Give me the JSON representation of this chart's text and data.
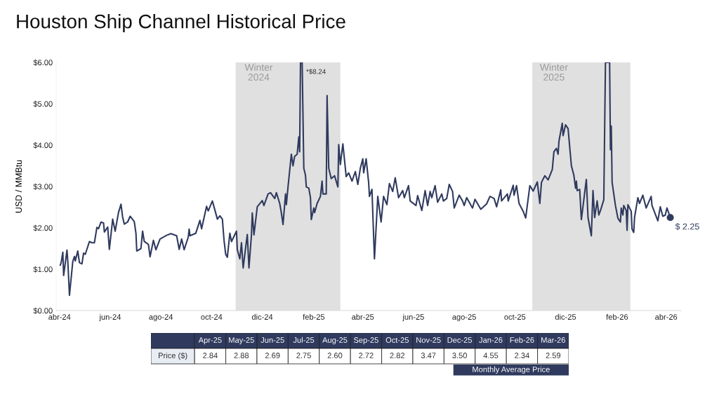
{
  "chart_data": [
    {
      "type": "line",
      "title": "Houston Ship Channel Historical Price",
      "ylabel": "USD / MMBtu",
      "xlim": [
        "2024-03-28",
        "2026-04-19"
      ],
      "xticks": [
        {
          "value": "2024-04-01",
          "label": "abr-24"
        },
        {
          "value": "2024-06-01",
          "label": "jun-24"
        },
        {
          "value": "2024-08-01",
          "label": "ago-24"
        },
        {
          "value": "2024-10-01",
          "label": "oct-24"
        },
        {
          "value": "2024-12-01",
          "label": "dic-24"
        },
        {
          "value": "2025-02-01",
          "label": "feb-25"
        },
        {
          "value": "2025-04-01",
          "label": "abr-25"
        },
        {
          "value": "2025-06-01",
          "label": "jun-25"
        },
        {
          "value": "2025-08-01",
          "label": "ago-25"
        },
        {
          "value": "2025-10-01",
          "label": "oct-25"
        },
        {
          "value": "2025-12-01",
          "label": "dic-25"
        },
        {
          "value": "2026-02-01",
          "label": "feb-26"
        },
        {
          "value": "2026-04-01",
          "label": "abr-26"
        }
      ],
      "ylim": [
        0,
        6
      ],
      "yticks": [
        {
          "value": 0,
          "label": "$0.00"
        },
        {
          "value": 1,
          "label": "$1.00"
        },
        {
          "value": 2,
          "label": "$2.00"
        },
        {
          "value": 3,
          "label": "$3.00"
        },
        {
          "value": 4,
          "label": "$4.00"
        },
        {
          "value": 5,
          "label": "$5.00"
        },
        {
          "value": 6,
          "label": "$6.00"
        }
      ],
      "grid": false,
      "legend": false,
      "bands": [
        {
          "axis": "x",
          "from": "2024-10-30",
          "to": "2025-03-05",
          "label": "Winter\n2024",
          "color": "#e0e0e0"
        },
        {
          "axis": "x",
          "from": "2025-10-22",
          "to": "2026-02-17",
          "label": "Winter\n2025",
          "color": "#e0e0e0"
        }
      ],
      "annotations": [
        {
          "text": "*$8.24",
          "x": "2025-01-17",
          "y": 6.0
        },
        {
          "text": "$ 2.25",
          "x": "2026-04-06",
          "y": 2.25
        }
      ],
      "series": [
        {
          "type": "line",
          "color": "#2f3a5e",
          "x": [
            "2024-04-02",
            "2024-04-03",
            "2024-04-05",
            "2024-04-06",
            "2024-04-10",
            "2024-04-11",
            "2024-04-13",
            "2024-04-17",
            "2024-04-19",
            "2024-04-20",
            "2024-04-23",
            "2024-04-25",
            "2024-04-28",
            "2024-04-30",
            "2024-05-02",
            "2024-05-07",
            "2024-05-10",
            "2024-05-13",
            "2024-05-16",
            "2024-05-18",
            "2024-05-21",
            "2024-05-24",
            "2024-05-25",
            "2024-05-29",
            "2024-05-31",
            "2024-06-04",
            "2024-06-07",
            "2024-06-11",
            "2024-06-14",
            "2024-06-16",
            "2024-06-18",
            "2024-06-22",
            "2024-06-25",
            "2024-06-30",
            "2024-07-02",
            "2024-07-03",
            "2024-07-08",
            "2024-07-10",
            "2024-07-12",
            "2024-07-17",
            "2024-07-19",
            "2024-07-23",
            "2024-07-26",
            "2024-07-31",
            "2024-08-08",
            "2024-08-13",
            "2024-08-20",
            "2024-08-23",
            "2024-08-26",
            "2024-08-29",
            "2024-09-03",
            "2024-09-04",
            "2024-09-05",
            "2024-09-12",
            "2024-09-17",
            "2024-09-19",
            "2024-09-25",
            "2024-09-27",
            "2024-10-02",
            "2024-10-05",
            "2024-10-08",
            "2024-10-11",
            "2024-10-14",
            "2024-10-16",
            "2024-10-18",
            "2024-10-20",
            "2024-10-23",
            "2024-10-25",
            "2024-10-31",
            "2024-11-01",
            "2024-11-04",
            "2024-11-06",
            "2024-11-08",
            "2024-11-13",
            "2024-11-15",
            "2024-11-18",
            "2024-11-19",
            "2024-11-21",
            "2024-11-25",
            "2024-12-01",
            "2024-12-03",
            "2024-12-08",
            "2024-12-11",
            "2024-12-16",
            "2024-12-18",
            "2024-12-22",
            "2024-12-24",
            "2024-12-26",
            "2024-12-29",
            "2024-12-30",
            "2025-01-01",
            "2025-01-05",
            "2025-01-07",
            "2025-01-09",
            "2025-01-12",
            "2025-01-14",
            "2025-01-15",
            "2025-01-16",
            "2025-01-18",
            "2025-01-20",
            "2025-01-22",
            "2025-01-23",
            "2025-01-26",
            "2025-01-28",
            "2025-01-29",
            "2025-02-01",
            "2025-02-02",
            "2025-02-05",
            "2025-02-09",
            "2025-02-11",
            "2025-02-12",
            "2025-02-16",
            "2025-02-17",
            "2025-02-19",
            "2025-02-22",
            "2025-02-26",
            "2025-03-02",
            "2025-03-03",
            "2025-03-05",
            "2025-03-08",
            "2025-03-12",
            "2025-03-15",
            "2025-03-19",
            "2025-03-23",
            "2025-03-26",
            "2025-03-29",
            "2025-04-01",
            "2025-04-02",
            "2025-04-05",
            "2025-04-08",
            "2025-04-09",
            "2025-04-12",
            "2025-04-15",
            "2025-04-19",
            "2025-04-23",
            "2025-04-26",
            "2025-04-30",
            "2025-05-03",
            "2025-05-07",
            "2025-05-10",
            "2025-05-14",
            "2025-05-19",
            "2025-05-21",
            "2025-05-26",
            "2025-05-28",
            "2025-06-04",
            "2025-06-06",
            "2025-06-11",
            "2025-06-15",
            "2025-06-18",
            "2025-06-21",
            "2025-06-23",
            "2025-06-27",
            "2025-06-30",
            "2025-07-05",
            "2025-07-07",
            "2025-07-11",
            "2025-07-14",
            "2025-07-18",
            "2025-07-20",
            "2025-07-26",
            "2025-07-30",
            "2025-08-01",
            "2025-08-04",
            "2025-08-11",
            "2025-08-14",
            "2025-08-21",
            "2025-08-28",
            "2025-09-01",
            "2025-09-06",
            "2025-09-09",
            "2025-09-14",
            "2025-09-15",
            "2025-09-22",
            "2025-09-23",
            "2025-09-29",
            "2025-09-30",
            "2025-10-03",
            "2025-10-06",
            "2025-10-11",
            "2025-10-14",
            "2025-10-19",
            "2025-10-23",
            "2025-10-28",
            "2025-10-31",
            "2025-11-02",
            "2025-11-06",
            "2025-11-10",
            "2025-11-15",
            "2025-11-17",
            "2025-11-20",
            "2025-11-22",
            "2025-11-23",
            "2025-11-27",
            "2025-11-28",
            "2025-12-01",
            "2025-12-04",
            "2025-12-08",
            "2025-12-11",
            "2025-12-13",
            "2025-12-14",
            "2025-12-15",
            "2025-12-18",
            "2025-12-20",
            "2025-12-26",
            "2025-12-28",
            "2026-01-01",
            "2026-01-03",
            "2026-01-05",
            "2026-01-08",
            "2026-01-10",
            "2026-01-12",
            "2026-01-16",
            "2026-01-18",
            "2026-01-23",
            "2026-01-24",
            "2026-01-25",
            "2026-01-26",
            "2026-01-30",
            "2026-02-02",
            "2026-02-05",
            "2026-02-06",
            "2026-02-08",
            "2026-02-09",
            "2026-02-12",
            "2026-02-13",
            "2026-02-14",
            "2026-02-18",
            "2026-02-19",
            "2026-02-21",
            "2026-02-22",
            "2026-02-26",
            "2026-02-28",
            "2026-03-04",
            "2026-03-08",
            "2026-03-14",
            "2026-03-15",
            "2026-03-22",
            "2026-03-25",
            "2026-03-28",
            "2026-03-31",
            "2026-04-02",
            "2026-04-06"
          ],
          "values": [
            1.1,
            1.16,
            1.41,
            0.85,
            1.46,
            1.19,
            0.37,
            1.19,
            1.31,
            1.2,
            1.44,
            1.16,
            1.13,
            1.39,
            1.36,
            1.67,
            1.64,
            1.64,
            2.01,
            1.98,
            2.14,
            2.12,
            1.9,
            2.02,
            1.48,
            2.21,
            1.92,
            2.37,
            2.57,
            2.26,
            2.09,
            2.14,
            2.28,
            2.15,
            1.87,
            1.44,
            1.5,
            1.92,
            1.67,
            1.6,
            1.3,
            1.7,
            1.47,
            1.73,
            1.82,
            1.86,
            1.81,
            1.48,
            1.73,
            1.47,
            1.78,
            1.97,
            1.81,
            1.87,
            2.18,
            1.98,
            2.52,
            2.41,
            2.65,
            2.43,
            2.21,
            2.29,
            2.21,
            1.7,
            1.36,
            1.29,
            1.87,
            1.67,
            1.92,
            1.47,
            1.25,
            1.64,
            1.03,
            1.84,
            1.03,
            1.83,
            2.36,
            1.83,
            2.51,
            2.66,
            2.54,
            2.82,
            2.85,
            2.71,
            2.85,
            2.59,
            2.36,
            2.08,
            2.82,
            2.56,
            2.99,
            3.78,
            3.5,
            3.73,
            3.78,
            4.2,
            3.84,
            6.0,
            6.0,
            3.44,
            3.27,
            2.99,
            2.96,
            2.73,
            2.2,
            2.48,
            2.37,
            2.59,
            2.76,
            3.13,
            2.82,
            2.82,
            5.2,
            3.44,
            3.19,
            3.26,
            2.99,
            4.01,
            3.53,
            4.03,
            3.24,
            3.33,
            3.13,
            3.36,
            3.05,
            3.44,
            3.67,
            3.33,
            3.67,
            3.1,
            2.76,
            2.93,
            1.25,
            2.76,
            2.14,
            2.76,
            2.56,
            3.07,
            2.88,
            3.21,
            2.73,
            2.9,
            2.73,
            3.02,
            2.65,
            2.54,
            2.78,
            2.42,
            2.9,
            2.54,
            2.88,
            2.73,
            3.02,
            2.62,
            2.82,
            2.65,
            2.71,
            3.05,
            2.88,
            2.48,
            2.79,
            2.65,
            2.54,
            2.73,
            2.48,
            2.69,
            2.45,
            2.58,
            2.76,
            2.71,
            2.51,
            2.92,
            2.65,
            2.82,
            2.65,
            3.03,
            2.79,
            3.02,
            2.59,
            2.4,
            2.24,
            3.02,
            2.89,
            3.11,
            2.59,
            3.1,
            3.26,
            3.16,
            3.41,
            3.84,
            3.92,
            3.78,
            4.09,
            4.53,
            4.23,
            4.49,
            4.4,
            3.5,
            3.27,
            2.96,
            3.13,
            2.9,
            2.93,
            2.2,
            3.17,
            2.25,
            1.81,
            2.9,
            2.25,
            2.65,
            2.31,
            2.42,
            2.68,
            6.0,
            6.0,
            3.89,
            4.46,
            3.1,
            2.54,
            2.23,
            2.14,
            2.48,
            2.31,
            2.54,
            2.42,
            1.94,
            2.56,
            2.4,
            1.97,
            1.89,
            2.25,
            2.73,
            2.59,
            2.79,
            2.48,
            2.76,
            2.54,
            2.17,
            2.51,
            2.28,
            2.31,
            2.48,
            2.25
          ]
        },
        {
          "type": "scatter",
          "color": "#2f3a5e",
          "marker": "circle",
          "x": [
            "2026-04-06"
          ],
          "values": [
            2.25
          ]
        }
      ]
    },
    {
      "type": "other",
      "categories": [
        "Apr-25",
        "May-25",
        "Jun-25",
        "Jul-25",
        "Aug-25",
        "Sep-25",
        "Oct-25",
        "Nov-25",
        "Dec-25",
        "Jan-26",
        "Feb-26",
        "Mar-26"
      ],
      "series": [
        {
          "name": "Price ($)",
          "color": "#ffffff",
          "values": [
            2.84,
            2.88,
            2.69,
            2.75,
            2.6,
            2.72,
            2.82,
            3.47,
            3.5,
            4.55,
            2.34,
            2.59
          ],
          "value_labels": [
            "2.84",
            "2.88",
            "2.69",
            "2.75",
            "2.60",
            "2.72",
            "2.82",
            "3.47",
            "3.50",
            "4.55",
            "2.34",
            "2.59"
          ]
        }
      ],
      "annotations": [
        "Monthly Average Price"
      ]
    }
  ]
}
